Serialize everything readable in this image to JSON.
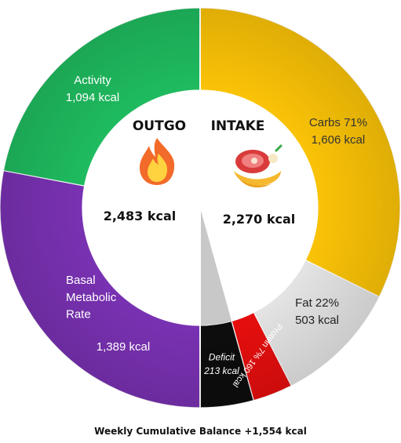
{
  "chart_data": {
    "type": "pie",
    "variant": "two-half-donut",
    "outgo": {
      "header": "OUTGO",
      "total_label": "2,483 kcal",
      "segments": [
        {
          "id": "activity",
          "name": "Activity",
          "value_label": "1,094 kcal",
          "value": 1094,
          "color": "#1fbd60"
        },
        {
          "id": "bmr",
          "name": "Basal Metabolic Rate",
          "value_label": "1,389 kcal",
          "value": 1389,
          "color": "#7a32b4"
        }
      ]
    },
    "intake": {
      "header": "INTAKE",
      "total_label": "2,270 kcal",
      "segments": [
        {
          "id": "carbs",
          "name": "Carbs 71%",
          "value_label": "1,606 kcal",
          "value": 1606,
          "color": "#fdc507"
        },
        {
          "id": "fat",
          "name": "Fat 22%",
          "value_label": "503 kcal",
          "value": 503,
          "color": "#e6e6e6"
        },
        {
          "id": "protein",
          "name": "Protein 7% 160 kcal",
          "value": 160,
          "color": "#e80e0e"
        },
        {
          "id": "deficit",
          "name": "Deficit",
          "value_label": "213 kcal",
          "value": 213,
          "color": "#0d0d0d"
        }
      ]
    },
    "footer": "Weekly Cumulative Balance +1,554 kcal"
  },
  "icons": {
    "outgo": "fire-icon",
    "intake": "food-icon"
  }
}
